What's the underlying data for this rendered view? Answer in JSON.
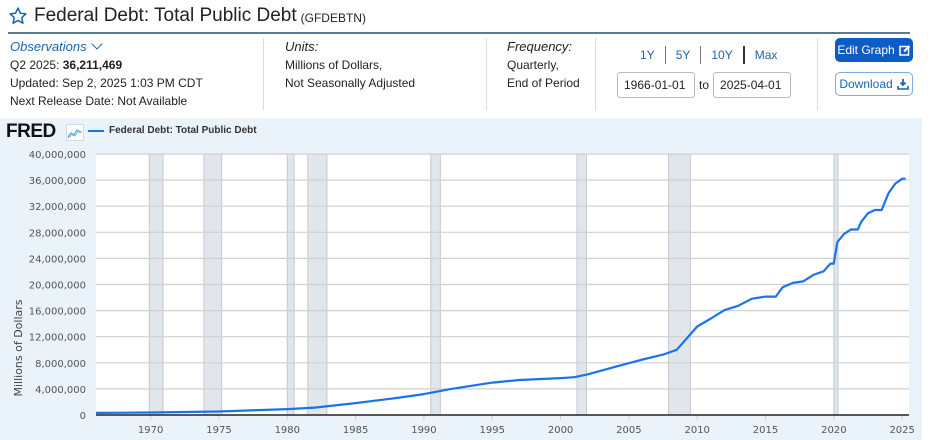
{
  "header": {
    "title": "Federal Debt: Total Public Debt",
    "series_id": "(GFDEBTN)",
    "star_icon": "star-outline-icon"
  },
  "observations": {
    "label": "Observations",
    "period": "Q2 2025:",
    "value": "36,211,469",
    "updated": "Updated: Sep 2, 2025 1:03 PM CDT",
    "next_release": "Next Release Date: Not Available"
  },
  "units": {
    "label": "Units:",
    "line1": "Millions of Dollars,",
    "line2": "Not Seasonally Adjusted"
  },
  "frequency": {
    "label": "Frequency:",
    "line1": "Quarterly,",
    "line2": "End of Period"
  },
  "ranges": [
    "1Y",
    "5Y",
    "10Y",
    "Max"
  ],
  "dates": {
    "start": "1966-01-01",
    "to": "to",
    "end": "2025-04-01"
  },
  "buttons": {
    "edit": "Edit Graph",
    "download": "Download"
  },
  "logo": "FRED",
  "colors": {
    "line": "#1a73e8",
    "recession": "#e1e6ec",
    "accent": "#0b5cc4",
    "panel": "#eaf2fa"
  },
  "chart_data": {
    "type": "line",
    "title": "Federal Debt: Total Public Debt",
    "legend": [
      "Federal Debt: Total Public Debt"
    ],
    "legend_position": "top-left",
    "xlabel": "",
    "ylabel": "Millions of Dollars",
    "xlim": [
      1966,
      2025.5
    ],
    "ylim": [
      0,
      40000000
    ],
    "grid": true,
    "x_ticks": [
      "1970",
      "1975",
      "1980",
      "1985",
      "1990",
      "1995",
      "2000",
      "2005",
      "2010",
      "2015",
      "2020",
      "2025"
    ],
    "y_ticks": [
      "0",
      "4,000,000",
      "8,000,000",
      "12,000,000",
      "16,000,000",
      "20,000,000",
      "24,000,000",
      "28,000,000",
      "32,000,000",
      "36,000,000",
      "40,000,000"
    ],
    "recessions": [
      [
        1969.9,
        1970.9
      ],
      [
        1973.9,
        1975.2
      ],
      [
        1980.0,
        1980.5
      ],
      [
        1981.5,
        1982.9
      ],
      [
        1990.5,
        1991.2
      ],
      [
        2001.2,
        2001.9
      ],
      [
        2007.9,
        2009.5
      ],
      [
        2020.0,
        2020.3
      ]
    ],
    "series": [
      {
        "name": "Federal Debt: Total Public Debt",
        "x": [
          1966,
          1970,
          1975,
          1980,
          1982,
          1985,
          1988,
          1990,
          1992,
          1995,
          1997,
          2000,
          2001,
          2002,
          2004,
          2006,
          2007.5,
          2008.5,
          2010,
          2011,
          2012,
          2013,
          2014,
          2015,
          2015.75,
          2016.25,
          2017,
          2017.75,
          2018.5,
          2019.25,
          2019.75,
          2020.0,
          2020.25,
          2020.75,
          2021.25,
          2021.75,
          2022.0,
          2022.5,
          2023.0,
          2023.5,
          2024.0,
          2024.5,
          2025.0,
          2025.25
        ],
        "values": [
          320000,
          380000,
          540000,
          900000,
          1140000,
          1820000,
          2600000,
          3210000,
          4000000,
          4970000,
          5370000,
          5660000,
          5800000,
          6230000,
          7380000,
          8500000,
          9250000,
          9990000,
          13560000,
          14790000,
          16070000,
          16740000,
          17820000,
          18150000,
          18150000,
          19570000,
          20240000,
          20480000,
          21470000,
          22030000,
          23200000,
          23200000,
          26480000,
          27750000,
          28430000,
          28430000,
          29600000,
          30930000,
          31410000,
          31410000,
          34000000,
          35460000,
          36210000,
          36210000
        ]
      }
    ]
  }
}
